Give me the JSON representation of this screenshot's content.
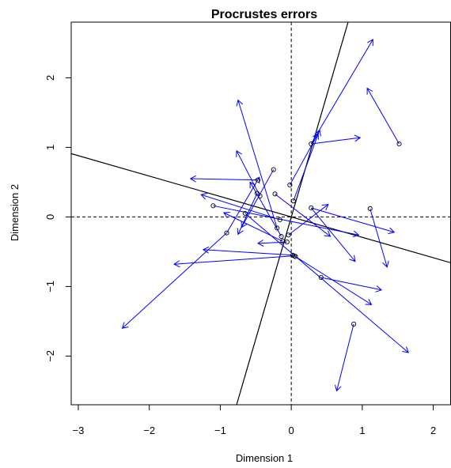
{
  "chart_data": {
    "type": "scatter",
    "title": "Procrustes errors",
    "xlabel": "Dimension 1",
    "ylabel": "Dimension 2",
    "xlim": [
      -3.1,
      2.25
    ],
    "ylim": [
      -2.7,
      2.8
    ],
    "x_ticks": [
      -3,
      -2,
      -1,
      0,
      1,
      2
    ],
    "y_ticks": [
      -2,
      -1,
      0,
      1,
      2
    ],
    "grid": false,
    "reference_lines": [
      {
        "orientation": "horizontal",
        "value": 0,
        "style": "dashed"
      },
      {
        "orientation": "vertical",
        "value": 0,
        "style": "dashed"
      }
    ],
    "rotation_axes": [
      {
        "from": [
          -3.1,
          0.91
        ],
        "to": [
          2.25,
          -0.66
        ]
      },
      {
        "from": [
          -0.77,
          -2.7
        ],
        "to": [
          0.8,
          2.8
        ]
      }
    ],
    "arrow_color": "#0000ff",
    "point_color": "#000000",
    "arrows": [
      {
        "from": [
          1.52,
          1.05
        ],
        "to": [
          1.07,
          1.85
        ]
      },
      {
        "from": [
          0.28,
          1.05
        ],
        "to": [
          1.15,
          2.55
        ]
      },
      {
        "from": [
          0.28,
          1.05
        ],
        "to": [
          0.97,
          1.14
        ]
      },
      {
        "from": [
          0.03,
          0.23
        ],
        "to": [
          0.4,
          1.25
        ]
      },
      {
        "from": [
          -0.02,
          0.46
        ],
        "to": [
          0.38,
          1.2
        ]
      },
      {
        "from": [
          -0.25,
          0.68
        ],
        "to": [
          -0.7,
          -0.15
        ]
      },
      {
        "from": [
          -0.23,
          0.33
        ],
        "to": [
          0.55,
          -0.28
        ]
      },
      {
        "from": [
          -0.47,
          0.53
        ],
        "to": [
          -1.42,
          0.55
        ]
      },
      {
        "from": [
          -0.48,
          0.34
        ],
        "to": [
          -0.75,
          -0.25
        ]
      },
      {
        "from": [
          -0.44,
          0.3
        ],
        "to": [
          -0.77,
          0.95
        ]
      },
      {
        "from": [
          -0.16,
          -0.04
        ],
        "to": [
          -1.27,
          0.32
        ]
      },
      {
        "from": [
          -0.2,
          -0.16
        ],
        "to": [
          -0.75,
          1.68
        ]
      },
      {
        "from": [
          -0.14,
          -0.28
        ],
        "to": [
          -0.58,
          0.5
        ]
      },
      {
        "from": [
          -0.12,
          -0.35
        ],
        "to": [
          -0.95,
          0.06
        ]
      },
      {
        "from": [
          -0.06,
          -0.36
        ],
        "to": [
          -0.47,
          -0.38
        ]
      },
      {
        "from": [
          -0.04,
          -0.26
        ],
        "to": [
          0.52,
          0.18
        ]
      },
      {
        "from": [
          0.28,
          0.13
        ],
        "to": [
          1.45,
          -0.22
        ]
      },
      {
        "from": [
          0.28,
          0.13
        ],
        "to": [
          0.9,
          -0.64
        ]
      },
      {
        "from": [
          1.11,
          0.12
        ],
        "to": [
          1.35,
          -0.72
        ]
      },
      {
        "from": [
          -1.1,
          0.16
        ],
        "to": [
          0.95,
          -0.26
        ]
      },
      {
        "from": [
          -0.91,
          -0.23
        ],
        "to": [
          -0.45,
          0.57
        ]
      },
      {
        "from": [
          -0.91,
          -0.23
        ],
        "to": [
          -2.38,
          -1.6
        ]
      },
      {
        "from": [
          0.02,
          -0.55
        ],
        "to": [
          -1.24,
          -0.47
        ]
      },
      {
        "from": [
          0.04,
          -0.56
        ],
        "to": [
          -1.65,
          -0.68
        ]
      },
      {
        "from": [
          0.42,
          -0.87
        ],
        "to": [
          1.27,
          -1.05
        ]
      },
      {
        "from": [
          0.06,
          -0.57
        ],
        "to": [
          1.13,
          -1.26
        ]
      },
      {
        "from": [
          0.88,
          -1.54
        ],
        "to": [
          0.64,
          -2.5
        ]
      },
      {
        "from": [
          -0.65,
          0.05
        ],
        "to": [
          1.65,
          -1.95
        ]
      }
    ]
  }
}
